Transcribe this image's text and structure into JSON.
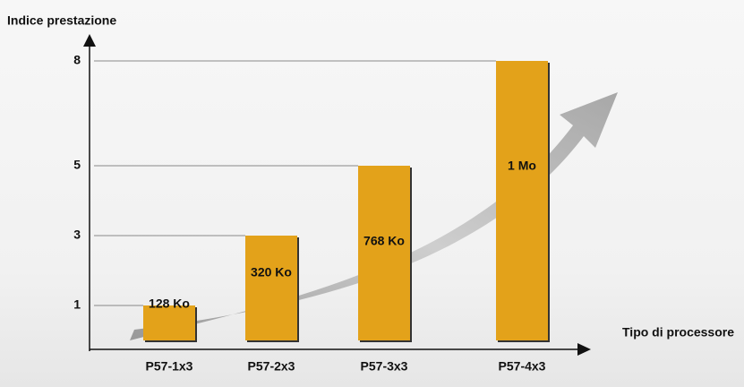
{
  "chart_data": {
    "type": "bar",
    "y_label": "Indice prestazione",
    "x_label": "Tipo di processore",
    "categories": [
      "P57-1x3",
      "P57-2x3",
      "P57-3x3",
      "P57-4x3"
    ],
    "values": [
      1,
      3,
      5,
      8
    ],
    "bar_labels": [
      "128 Ko",
      "320 Ko",
      "768 Ko",
      "1 Mo"
    ],
    "color": "#e3a21a",
    "ylim": [
      0,
      8
    ],
    "yticks": [
      1,
      3,
      5,
      8
    ],
    "grid": true
  }
}
